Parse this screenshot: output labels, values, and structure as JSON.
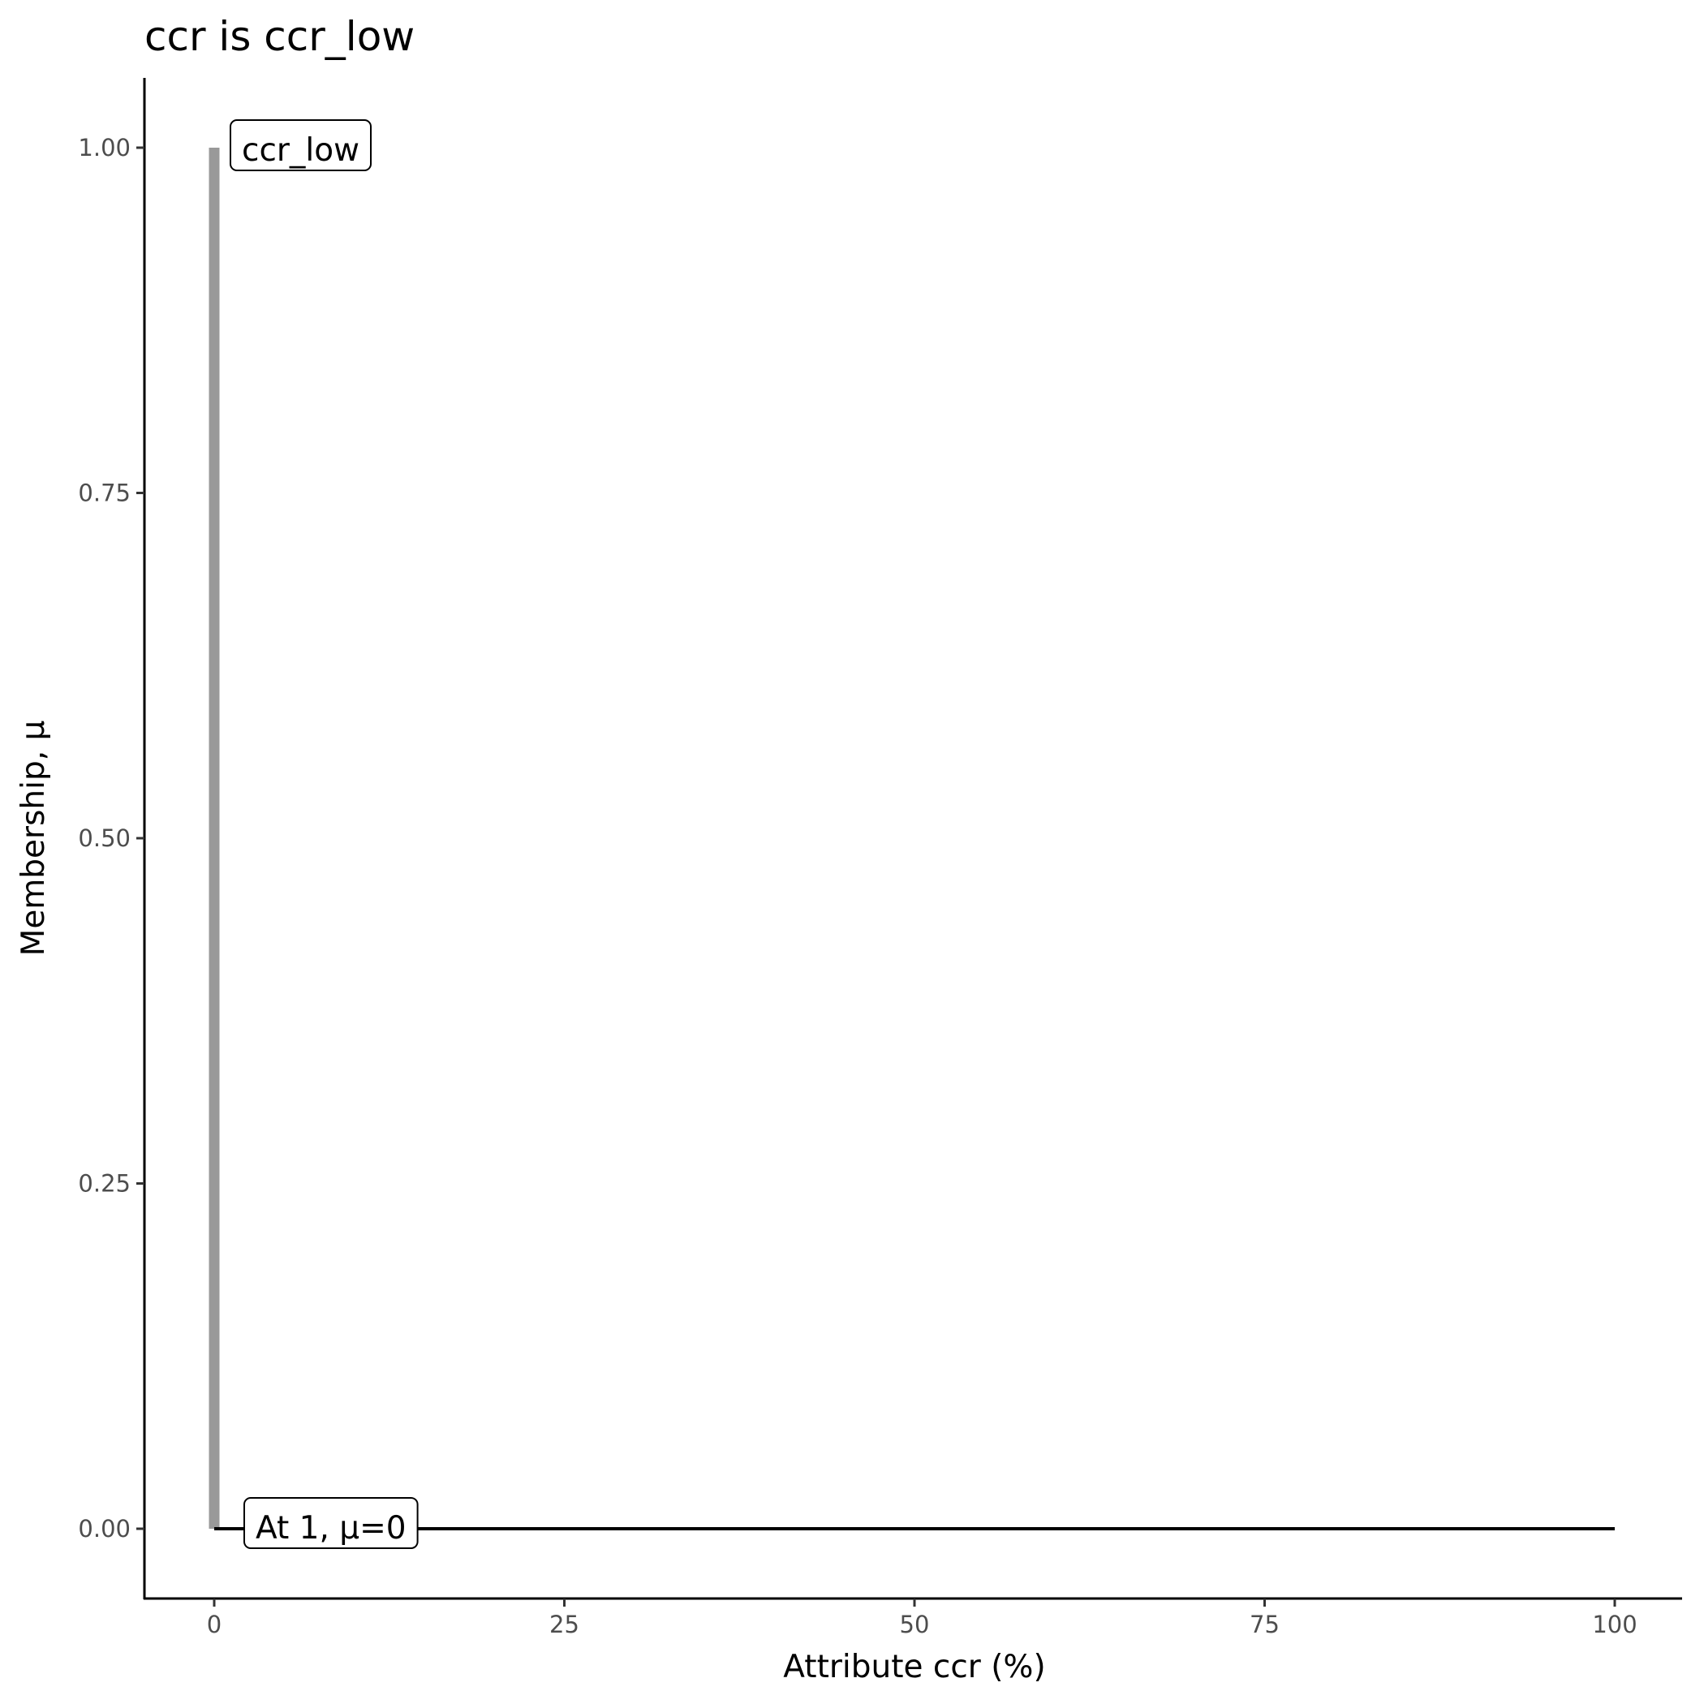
{
  "chart_data": {
    "type": "line",
    "title": "ccr is ccr_low",
    "xlabel": "Attribute ccr (%)",
    "ylabel": "Membership, μ",
    "xlim": [
      -5,
      105
    ],
    "ylim": [
      -0.05,
      1.05
    ],
    "xticks": [
      0,
      25,
      50,
      75,
      100
    ],
    "xtick_labels": [
      "0",
      "25",
      "50",
      "75",
      "100"
    ],
    "yticks": [
      0,
      0.25,
      0.5,
      0.75,
      1
    ],
    "ytick_labels": [
      "0.00",
      "0.25",
      "0.50",
      "0.75",
      "1.00"
    ],
    "grid": false,
    "series": [
      {
        "x": [
          0,
          0
        ],
        "y": [
          0,
          1
        ],
        "color": "#999999"
      },
      {
        "x": [
          0,
          100
        ],
        "y": [
          0,
          0
        ],
        "color": "#000000"
      }
    ],
    "annotations": [
      {
        "text": "ccr_low",
        "x": 0,
        "y": 1
      },
      {
        "text": "At 1, μ=0",
        "x": 1,
        "y": 0
      }
    ]
  }
}
